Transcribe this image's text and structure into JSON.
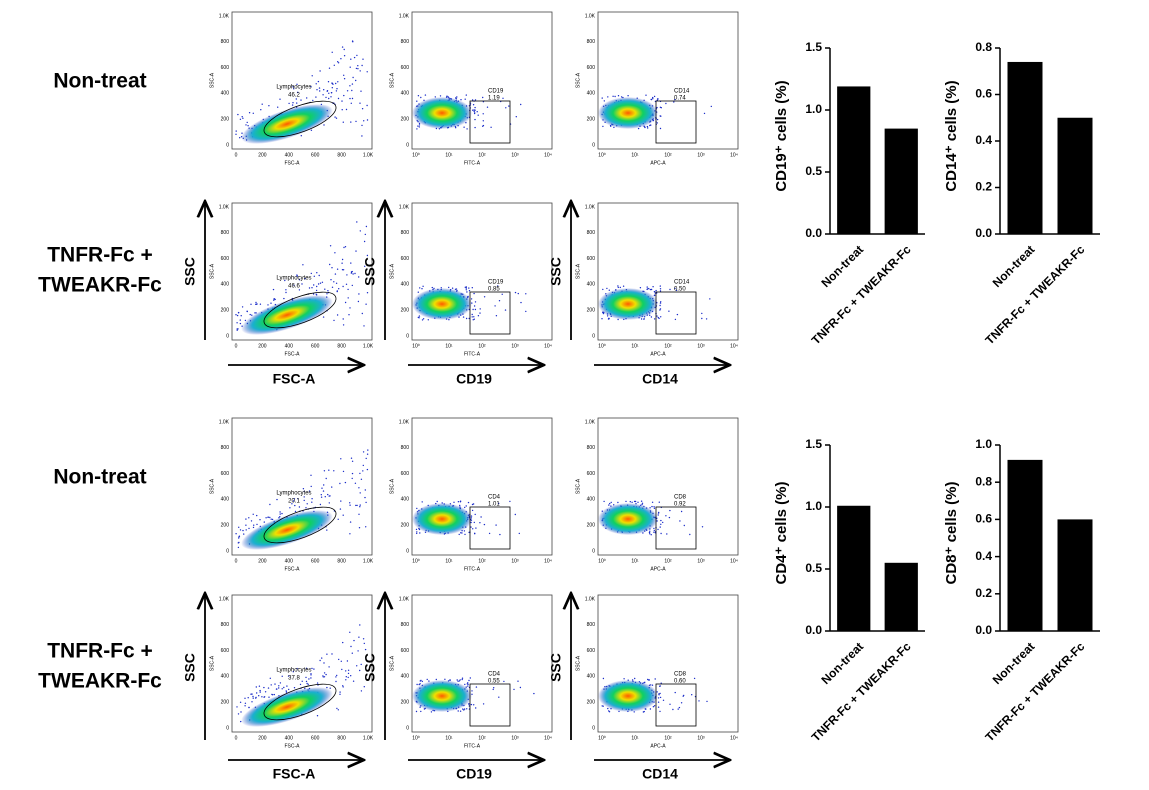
{
  "chart_data": [
    {
      "type": "bar",
      "ylabel": "CD19⁺ cells (%)",
      "categories": [
        "Non-treat",
        "TNFR-Fc + TWEAKR-Fc"
      ],
      "values": [
        1.19,
        0.85
      ],
      "color": "#000000",
      "ylim": [
        0,
        1.5
      ],
      "yticks": [
        {
          "value": 0,
          "label": "0.0"
        },
        {
          "value": 0.5,
          "label": "0.5"
        },
        {
          "value": 1,
          "label": "1.0"
        },
        {
          "value": 1.5,
          "label": "1.5"
        }
      ]
    },
    {
      "type": "bar",
      "ylabel": "CD14⁺ cells (%)",
      "categories": [
        "Non-treat",
        "TNFR-Fc + TWEAKR-Fc"
      ],
      "values": [
        0.74,
        0.5
      ],
      "color": "#000000",
      "ylim": [
        0,
        0.8
      ],
      "yticks": [
        {
          "value": 0,
          "label": "0.0"
        },
        0.2,
        0.4,
        0.6,
        0.8
      ]
    },
    {
      "type": "bar",
      "ylabel": "CD4⁺ cells (%)",
      "categories": [
        "Non-treat",
        "TNFR-Fc + TWEAKR-Fc"
      ],
      "values": [
        1.01,
        0.55
      ],
      "color": "#000000",
      "ylim": [
        0,
        1.5
      ],
      "yticks": [
        {
          "value": 0,
          "label": "0.0"
        },
        0.5,
        {
          "value": 1,
          "label": "1.0"
        },
        1.5
      ]
    },
    {
      "type": "bar",
      "ylabel": "CD8⁺ cells (%)",
      "categories": [
        "Non-treat",
        "TNFR-Fc + TWEAKR-Fc"
      ],
      "values": [
        0.92,
        0.6
      ],
      "color": "#000000",
      "ylim": [
        0,
        1.0
      ],
      "yticks": [
        {
          "value": 0,
          "label": "0.0"
        },
        0.2,
        0.4,
        0.6,
        0.8,
        {
          "value": 1,
          "label": "1.0"
        }
      ]
    }
  ],
  "flow_panels": {
    "rows": [
      {
        "label_lines": [
          "Non-treat"
        ],
        "plots": [
          {
            "gate": "Lymphocytes",
            "value": "46.2"
          },
          {
            "gate": "CD19",
            "value": "1.19"
          },
          {
            "gate": "CD14",
            "value": "0.74"
          }
        ]
      },
      {
        "label_lines": [
          "TNFR-Fc  +",
          "TWEAKR-Fc"
        ],
        "plots": [
          {
            "gate": "Lymphocytes",
            "value": "46.6"
          },
          {
            "gate": "CD19",
            "value": "0.85"
          },
          {
            "gate": "CD14",
            "value": "0.50"
          }
        ]
      },
      {
        "label_lines": [
          "Non-treat"
        ],
        "plots": [
          {
            "gate": "Lymphocytes",
            "value": "20.1"
          },
          {
            "gate": "CD4",
            "value": "1.01"
          },
          {
            "gate": "CD8",
            "value": "0.92"
          }
        ]
      },
      {
        "label_lines": [
          "TNFR-Fc  +",
          "TWEAKR-Fc"
        ],
        "plots": [
          {
            "gate": "Lymphocytes",
            "value": "37.8"
          },
          {
            "gate": "CD4",
            "value": "0.55"
          },
          {
            "gate": "CD8",
            "value": "0.60"
          }
        ]
      }
    ],
    "linear_ticks": [
      "0",
      "200",
      "400",
      "600",
      "800",
      "1.0K"
    ],
    "log_ticks": [
      "10⁰",
      "10¹",
      "10²",
      "10³",
      "10⁴"
    ],
    "plot_axis_titles": {
      "y": "SSC-A",
      "x": [
        "FSC-A",
        "FITC-A",
        "APC-A"
      ]
    },
    "arrow_labels": {
      "y": "SSC",
      "x": [
        "FSC-A",
        "CD19",
        "CD14"
      ]
    }
  }
}
